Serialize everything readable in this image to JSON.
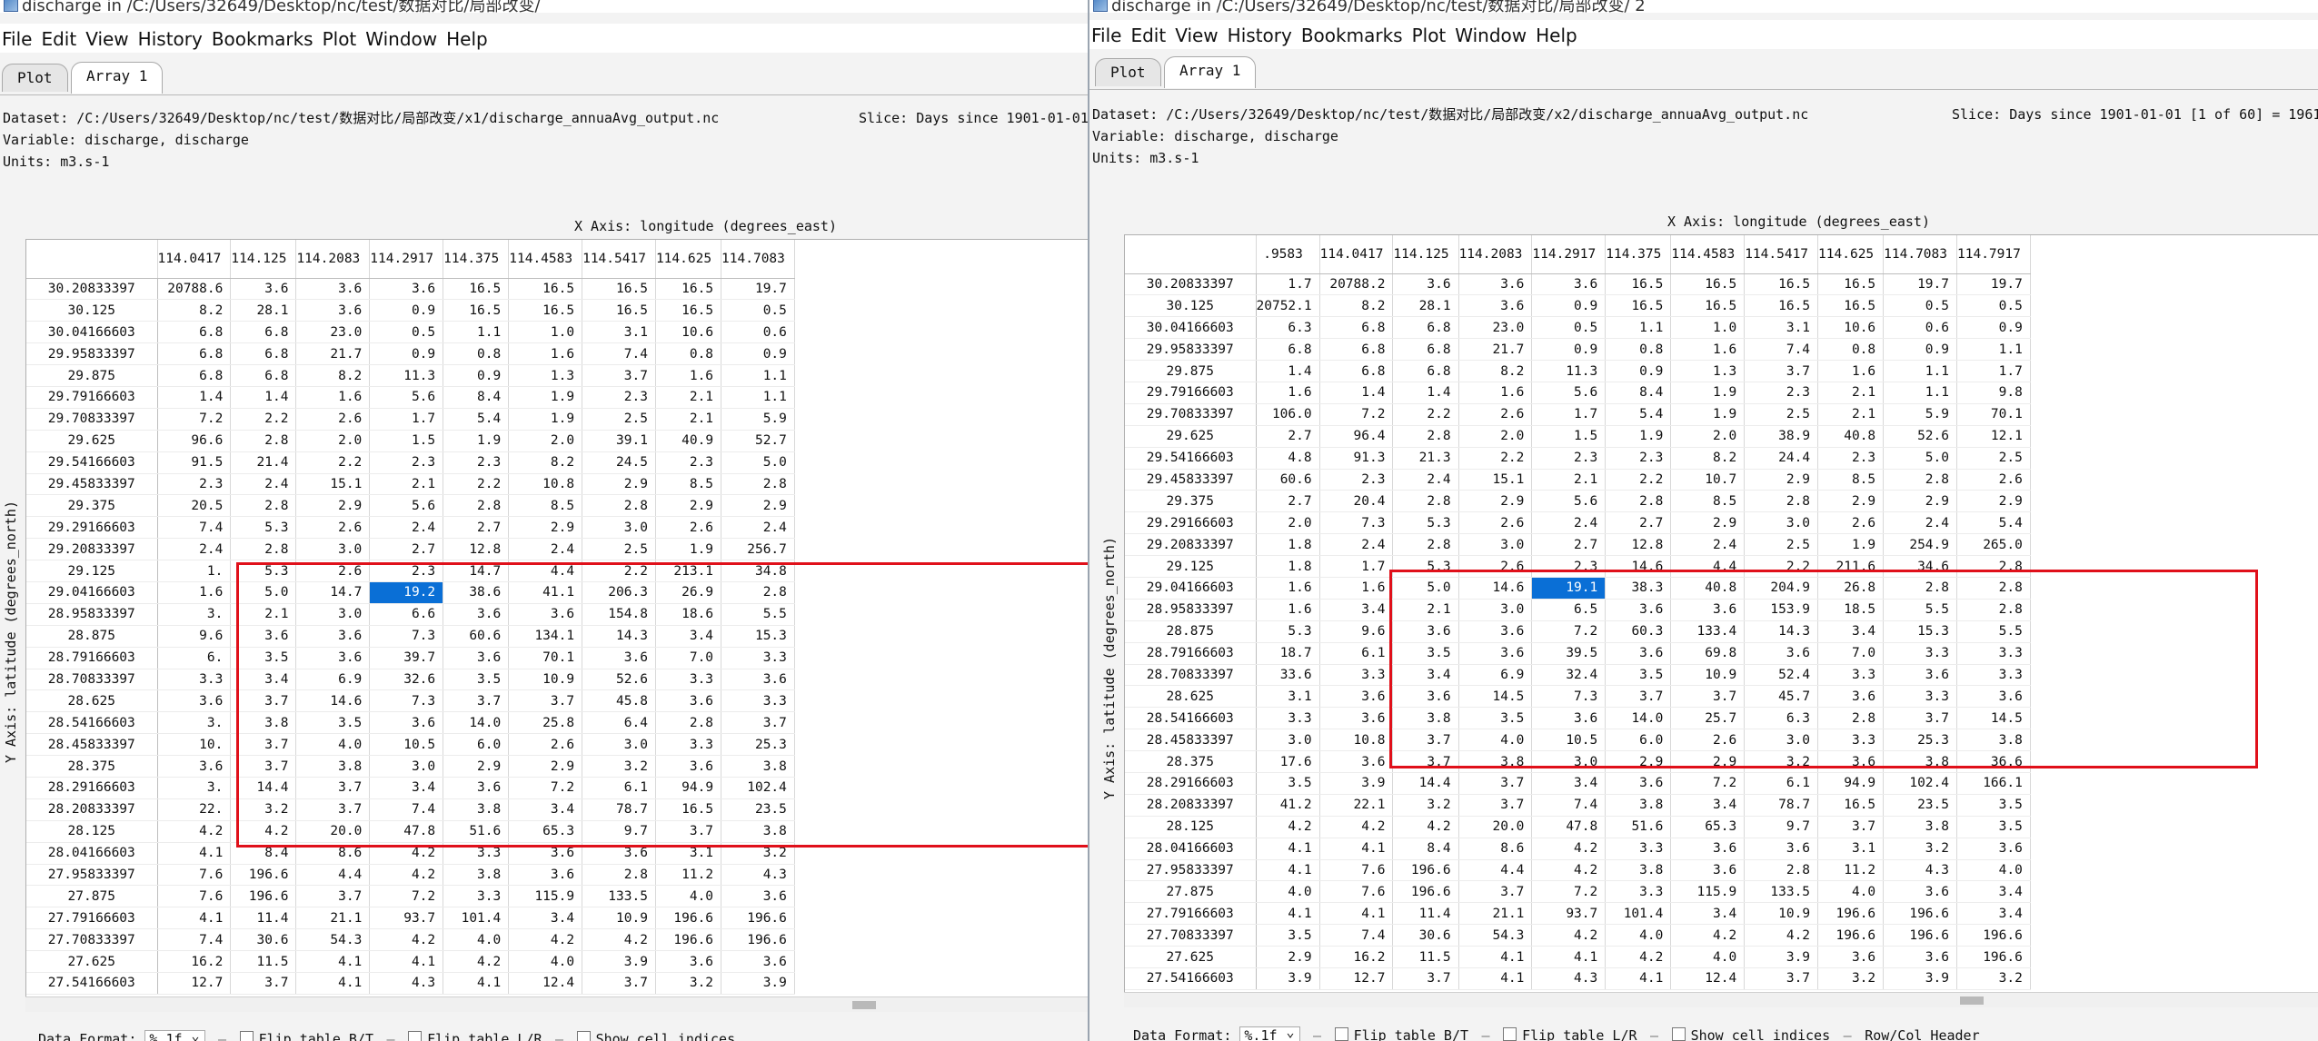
{
  "menu": [
    "File",
    "Edit",
    "View",
    "History",
    "Bookmarks",
    "Plot",
    "Window",
    "Help"
  ],
  "tabs": [
    "Plot",
    "Array 1"
  ],
  "labels": {
    "xaxis": "X Axis: longitude (degrees_east)",
    "yaxis": "Y Axis: latitude (degrees_north)",
    "variable": "Variable: discharge, discharge",
    "units": "Units: m3.s-1",
    "data_format_label": "Data Format:",
    "data_format_value": "%.1f",
    "flip_bt": "Flip table B/T",
    "flip_lr": "Flip table L/R",
    "show_indices": "Show cell indices",
    "rowcol_header": "Row/Col Header"
  },
  "left": {
    "title": "discharge in /C:/Users/32649/Desktop/nc/test/数据对比/局部改变/",
    "dataset": "Dataset: /C:/Users/32649/Desktop/nc/test/数据对比/局部改变/x1/discharge_annuaAvg_output.nc",
    "slice": "Slice: Days since 1901-01-01",
    "col_headers": [
      "114.0417",
      "114.125",
      "114.2083",
      "114.2917",
      "114.375",
      "114.4583",
      "114.5417",
      "114.625",
      "114.7083"
    ],
    "rows": [
      {
        "lat": "30.20833397",
        "first": "",
        "v": [
          "20788.6",
          "3.6",
          "3.6",
          "3.6",
          "16.5",
          "16.5",
          "16.5",
          "16.5",
          "19.7"
        ]
      },
      {
        "lat": "30.125",
        "first": "",
        "v": [
          "8.2",
          "28.1",
          "3.6",
          "0.9",
          "16.5",
          "16.5",
          "16.5",
          "16.5",
          "0.5"
        ]
      },
      {
        "lat": "30.04166603",
        "first": "",
        "v": [
          "6.8",
          "6.8",
          "23.0",
          "0.5",
          "1.1",
          "1.0",
          "3.1",
          "10.6",
          "0.6"
        ]
      },
      {
        "lat": "29.95833397",
        "first": "",
        "v": [
          "6.8",
          "6.8",
          "21.7",
          "0.9",
          "0.8",
          "1.6",
          "7.4",
          "0.8",
          "0.9"
        ]
      },
      {
        "lat": "29.875",
        "first": "",
        "v": [
          "6.8",
          "6.8",
          "8.2",
          "11.3",
          "0.9",
          "1.3",
          "3.7",
          "1.6",
          "1.1"
        ]
      },
      {
        "lat": "29.79166603",
        "first": "",
        "v": [
          "1.4",
          "1.4",
          "1.6",
          "5.6",
          "8.4",
          "1.9",
          "2.3",
          "2.1",
          "1.1"
        ]
      },
      {
        "lat": "29.70833397",
        "first": "",
        "v": [
          "7.2",
          "2.2",
          "2.6",
          "1.7",
          "5.4",
          "1.9",
          "2.5",
          "2.1",
          "5.9"
        ]
      },
      {
        "lat": "29.625",
        "first": "",
        "v": [
          "96.6",
          "2.8",
          "2.0",
          "1.5",
          "1.9",
          "2.0",
          "39.1",
          "40.9",
          "52.7"
        ]
      },
      {
        "lat": "29.54166603",
        "first": "",
        "v": [
          "91.5",
          "21.4",
          "2.2",
          "2.3",
          "2.3",
          "8.2",
          "24.5",
          "2.3",
          "5.0"
        ]
      },
      {
        "lat": "29.45833397",
        "first": "",
        "v": [
          "2.3",
          "2.4",
          "15.1",
          "2.1",
          "2.2",
          "10.8",
          "2.9",
          "8.5",
          "2.8"
        ]
      },
      {
        "lat": "29.375",
        "first": "",
        "v": [
          "20.5",
          "2.8",
          "2.9",
          "5.6",
          "2.8",
          "8.5",
          "2.8",
          "2.9",
          "2.9"
        ]
      },
      {
        "lat": "29.29166603",
        "first": "",
        "v": [
          "7.4",
          "5.3",
          "2.6",
          "2.4",
          "2.7",
          "2.9",
          "3.0",
          "2.6",
          "2.4"
        ]
      },
      {
        "lat": "29.20833397",
        "first": "",
        "v": [
          "2.4",
          "2.8",
          "3.0",
          "2.7",
          "12.8",
          "2.4",
          "2.5",
          "1.9",
          "256.7"
        ]
      },
      {
        "lat": "29.125",
        "first": "",
        "v": [
          "1.",
          "5.3",
          "2.6",
          "2.3",
          "14.7",
          "4.4",
          "2.2",
          "213.1",
          "34.8"
        ]
      },
      {
        "lat": "29.04166603",
        "first": "",
        "v": [
          "1.6",
          "5.0",
          "14.7",
          "19.2",
          "38.6",
          "41.1",
          "206.3",
          "26.9",
          "2.8"
        ]
      },
      {
        "lat": "28.95833397",
        "first": "",
        "v": [
          "3.",
          "2.1",
          "3.0",
          "6.6",
          "3.6",
          "3.6",
          "154.8",
          "18.6",
          "5.5"
        ]
      },
      {
        "lat": "28.875",
        "first": "",
        "v": [
          "9.6",
          "3.6",
          "3.6",
          "7.3",
          "60.6",
          "134.1",
          "14.3",
          "3.4",
          "15.3"
        ]
      },
      {
        "lat": "28.79166603",
        "first": "",
        "v": [
          "6.",
          "3.5",
          "3.6",
          "39.7",
          "3.6",
          "70.1",
          "3.6",
          "7.0",
          "3.3"
        ]
      },
      {
        "lat": "28.70833397",
        "first": "",
        "v": [
          "3.3",
          "3.4",
          "6.9",
          "32.6",
          "3.5",
          "10.9",
          "52.6",
          "3.3",
          "3.6"
        ]
      },
      {
        "lat": "28.625",
        "first": "",
        "v": [
          "3.6",
          "3.7",
          "14.6",
          "7.3",
          "3.7",
          "3.7",
          "45.8",
          "3.6",
          "3.3"
        ]
      },
      {
        "lat": "28.54166603",
        "first": "",
        "v": [
          "3.",
          "3.8",
          "3.5",
          "3.6",
          "14.0",
          "25.8",
          "6.4",
          "2.8",
          "3.7"
        ]
      },
      {
        "lat": "28.45833397",
        "first": "",
        "v": [
          "10.",
          "3.7",
          "4.0",
          "10.5",
          "6.0",
          "2.6",
          "3.0",
          "3.3",
          "25.3"
        ]
      },
      {
        "lat": "28.375",
        "first": "",
        "v": [
          "3.6",
          "3.7",
          "3.8",
          "3.0",
          "2.9",
          "2.9",
          "3.2",
          "3.6",
          "3.8"
        ]
      },
      {
        "lat": "28.29166603",
        "first": "",
        "v": [
          "3.",
          "14.4",
          "3.7",
          "3.4",
          "3.6",
          "7.2",
          "6.1",
          "94.9",
          "102.4"
        ]
      },
      {
        "lat": "28.20833397",
        "first": "",
        "v": [
          "22.",
          "3.2",
          "3.7",
          "7.4",
          "3.8",
          "3.4",
          "78.7",
          "16.5",
          "23.5"
        ]
      },
      {
        "lat": "28.125",
        "first": "",
        "v": [
          "4.2",
          "4.2",
          "20.0",
          "47.8",
          "51.6",
          "65.3",
          "9.7",
          "3.7",
          "3.8"
        ]
      },
      {
        "lat": "28.04166603",
        "first": "",
        "v": [
          "4.1",
          "8.4",
          "8.6",
          "4.2",
          "3.3",
          "3.6",
          "3.6",
          "3.1",
          "3.2"
        ]
      },
      {
        "lat": "27.95833397",
        "first": "",
        "v": [
          "7.6",
          "196.6",
          "4.4",
          "4.2",
          "3.8",
          "3.6",
          "2.8",
          "11.2",
          "4.3"
        ]
      },
      {
        "lat": "27.875",
        "first": "",
        "v": [
          "7.6",
          "196.6",
          "3.7",
          "7.2",
          "3.3",
          "115.9",
          "133.5",
          "4.0",
          "3.6"
        ]
      },
      {
        "lat": "27.79166603",
        "first": "",
        "v": [
          "4.1",
          "11.4",
          "21.1",
          "93.7",
          "101.4",
          "3.4",
          "10.9",
          "196.6",
          "196.6"
        ]
      },
      {
        "lat": "27.70833397",
        "first": "",
        "v": [
          "7.4",
          "30.6",
          "54.3",
          "4.2",
          "4.0",
          "4.2",
          "4.2",
          "196.6",
          "196.6"
        ]
      },
      {
        "lat": "27.625",
        "first": "",
        "v": [
          "16.2",
          "11.5",
          "4.1",
          "4.1",
          "4.2",
          "4.0",
          "3.9",
          "3.6",
          "3.6"
        ]
      },
      {
        "lat": "27.54166603",
        "first": "",
        "v": [
          "12.7",
          "3.7",
          "4.1",
          "4.3",
          "4.1",
          "12.4",
          "3.7",
          "3.2",
          "3.9"
        ]
      }
    ]
  },
  "right": {
    "title": "discharge in /C:/Users/32649/Desktop/nc/test/数据对比/局部改变/ 2",
    "dataset": "Dataset: /C:/Users/32649/Desktop/nc/test/数据对比/局部改变/x2/discharge_annuaAvg_output.nc",
    "slice": "Slice: Days since 1901-01-01 [1 of 60] = 1961-",
    "col_headers": [
      ".9583",
      "114.0417",
      "114.125",
      "114.2083",
      "114.2917",
      "114.375",
      "114.4583",
      "114.5417",
      "114.625",
      "114.7083",
      "114.7917"
    ],
    "rows": [
      {
        "lat": "30.20833397",
        "v": [
          "1.7",
          "20788.2",
          "3.6",
          "3.6",
          "3.6",
          "16.5",
          "16.5",
          "16.5",
          "16.5",
          "19.7",
          "19.7"
        ]
      },
      {
        "lat": "30.125",
        "v": [
          "20752.1",
          "8.2",
          "28.1",
          "3.6",
          "0.9",
          "16.5",
          "16.5",
          "16.5",
          "16.5",
          "0.5",
          "0.5"
        ]
      },
      {
        "lat": "30.04166603",
        "v": [
          "6.3",
          "6.8",
          "6.8",
          "23.0",
          "0.5",
          "1.1",
          "1.0",
          "3.1",
          "10.6",
          "0.6",
          "0.9"
        ]
      },
      {
        "lat": "29.95833397",
        "v": [
          "6.8",
          "6.8",
          "6.8",
          "21.7",
          "0.9",
          "0.8",
          "1.6",
          "7.4",
          "0.8",
          "0.9",
          "1.1"
        ]
      },
      {
        "lat": "29.875",
        "v": [
          "1.4",
          "6.8",
          "6.8",
          "8.2",
          "11.3",
          "0.9",
          "1.3",
          "3.7",
          "1.6",
          "1.1",
          "1.7"
        ]
      },
      {
        "lat": "29.79166603",
        "v": [
          "1.6",
          "1.4",
          "1.4",
          "1.6",
          "5.6",
          "8.4",
          "1.9",
          "2.3",
          "2.1",
          "1.1",
          "9.8"
        ]
      },
      {
        "lat": "29.70833397",
        "v": [
          "106.0",
          "7.2",
          "2.2",
          "2.6",
          "1.7",
          "5.4",
          "1.9",
          "2.5",
          "2.1",
          "5.9",
          "70.1"
        ]
      },
      {
        "lat": "29.625",
        "v": [
          "2.7",
          "96.4",
          "2.8",
          "2.0",
          "1.5",
          "1.9",
          "2.0",
          "38.9",
          "40.8",
          "52.6",
          "12.1"
        ]
      },
      {
        "lat": "29.54166603",
        "v": [
          "4.8",
          "91.3",
          "21.3",
          "2.2",
          "2.3",
          "2.3",
          "8.2",
          "24.4",
          "2.3",
          "5.0",
          "2.5"
        ]
      },
      {
        "lat": "29.45833397",
        "v": [
          "60.6",
          "2.3",
          "2.4",
          "15.1",
          "2.1",
          "2.2",
          "10.7",
          "2.9",
          "8.5",
          "2.8",
          "2.6"
        ]
      },
      {
        "lat": "29.375",
        "v": [
          "2.7",
          "20.4",
          "2.8",
          "2.9",
          "5.6",
          "2.8",
          "8.5",
          "2.8",
          "2.9",
          "2.9",
          "2.9"
        ]
      },
      {
        "lat": "29.29166603",
        "v": [
          "2.0",
          "7.3",
          "5.3",
          "2.6",
          "2.4",
          "2.7",
          "2.9",
          "3.0",
          "2.6",
          "2.4",
          "5.4"
        ]
      },
      {
        "lat": "29.20833397",
        "v": [
          "1.8",
          "2.4",
          "2.8",
          "3.0",
          "2.7",
          "12.8",
          "2.4",
          "2.5",
          "1.9",
          "254.9",
          "265.0"
        ]
      },
      {
        "lat": "29.125",
        "v": [
          "1.8",
          "1.7",
          "5.3",
          "2.6",
          "2.3",
          "14.6",
          "4.4",
          "2.2",
          "211.6",
          "34.6",
          "2.8"
        ]
      },
      {
        "lat": "29.04166603",
        "v": [
          "1.6",
          "1.6",
          "5.0",
          "14.6",
          "19.1",
          "38.3",
          "40.8",
          "204.9",
          "26.8",
          "2.8",
          "2.8"
        ]
      },
      {
        "lat": "28.95833397",
        "v": [
          "1.6",
          "3.4",
          "2.1",
          "3.0",
          "6.5",
          "3.6",
          "3.6",
          "153.9",
          "18.5",
          "5.5",
          "2.8"
        ]
      },
      {
        "lat": "28.875",
        "v": [
          "5.3",
          "9.6",
          "3.6",
          "3.6",
          "7.2",
          "60.3",
          "133.4",
          "14.3",
          "3.4",
          "15.3",
          "5.5"
        ]
      },
      {
        "lat": "28.79166603",
        "v": [
          "18.7",
          "6.1",
          "3.5",
          "3.6",
          "39.5",
          "3.6",
          "69.8",
          "3.6",
          "7.0",
          "3.3",
          "3.3"
        ]
      },
      {
        "lat": "28.70833397",
        "v": [
          "33.6",
          "3.3",
          "3.4",
          "6.9",
          "32.4",
          "3.5",
          "10.9",
          "52.4",
          "3.3",
          "3.6",
          "3.3"
        ]
      },
      {
        "lat": "28.625",
        "v": [
          "3.1",
          "3.6",
          "3.6",
          "14.5",
          "7.3",
          "3.7",
          "3.7",
          "45.7",
          "3.6",
          "3.3",
          "3.6"
        ]
      },
      {
        "lat": "28.54166603",
        "v": [
          "3.3",
          "3.6",
          "3.8",
          "3.5",
          "3.6",
          "14.0",
          "25.7",
          "6.3",
          "2.8",
          "3.7",
          "14.5"
        ]
      },
      {
        "lat": "28.45833397",
        "v": [
          "3.0",
          "10.8",
          "3.7",
          "4.0",
          "10.5",
          "6.0",
          "2.6",
          "3.0",
          "3.3",
          "25.3",
          "3.8"
        ]
      },
      {
        "lat": "28.375",
        "v": [
          "17.6",
          "3.6",
          "3.7",
          "3.8",
          "3.0",
          "2.9",
          "2.9",
          "3.2",
          "3.6",
          "3.8",
          "36.6"
        ]
      },
      {
        "lat": "28.29166603",
        "v": [
          "3.5",
          "3.9",
          "14.4",
          "3.7",
          "3.4",
          "3.6",
          "7.2",
          "6.1",
          "94.9",
          "102.4",
          "166.1"
        ]
      },
      {
        "lat": "28.20833397",
        "v": [
          "41.2",
          "22.1",
          "3.2",
          "3.7",
          "7.4",
          "3.8",
          "3.4",
          "78.7",
          "16.5",
          "23.5",
          "3.5"
        ]
      },
      {
        "lat": "28.125",
        "v": [
          "4.2",
          "4.2",
          "4.2",
          "20.0",
          "47.8",
          "51.6",
          "65.3",
          "9.7",
          "3.7",
          "3.8",
          "3.5"
        ]
      },
      {
        "lat": "28.04166603",
        "v": [
          "4.1",
          "4.1",
          "8.4",
          "8.6",
          "4.2",
          "3.3",
          "3.6",
          "3.6",
          "3.1",
          "3.2",
          "3.6"
        ]
      },
      {
        "lat": "27.95833397",
        "v": [
          "4.1",
          "7.6",
          "196.6",
          "4.4",
          "4.2",
          "3.8",
          "3.6",
          "2.8",
          "11.2",
          "4.3",
          "4.0"
        ]
      },
      {
        "lat": "27.875",
        "v": [
          "4.0",
          "7.6",
          "196.6",
          "3.7",
          "7.2",
          "3.3",
          "115.9",
          "133.5",
          "4.0",
          "3.6",
          "3.4"
        ]
      },
      {
        "lat": "27.79166603",
        "v": [
          "4.1",
          "4.1",
          "11.4",
          "21.1",
          "93.7",
          "101.4",
          "3.4",
          "10.9",
          "196.6",
          "196.6",
          "3.4"
        ]
      },
      {
        "lat": "27.70833397",
        "v": [
          "3.5",
          "7.4",
          "30.6",
          "54.3",
          "4.2",
          "4.0",
          "4.2",
          "4.2",
          "196.6",
          "196.6",
          "196.6"
        ]
      },
      {
        "lat": "27.625",
        "v": [
          "2.9",
          "16.2",
          "11.5",
          "4.1",
          "4.1",
          "4.2",
          "4.0",
          "3.9",
          "3.6",
          "3.6",
          "196.6"
        ]
      },
      {
        "lat": "27.54166603",
        "v": [
          "3.9",
          "12.7",
          "3.7",
          "4.1",
          "4.3",
          "4.1",
          "12.4",
          "3.7",
          "3.2",
          "3.9",
          "3.2"
        ]
      }
    ]
  }
}
